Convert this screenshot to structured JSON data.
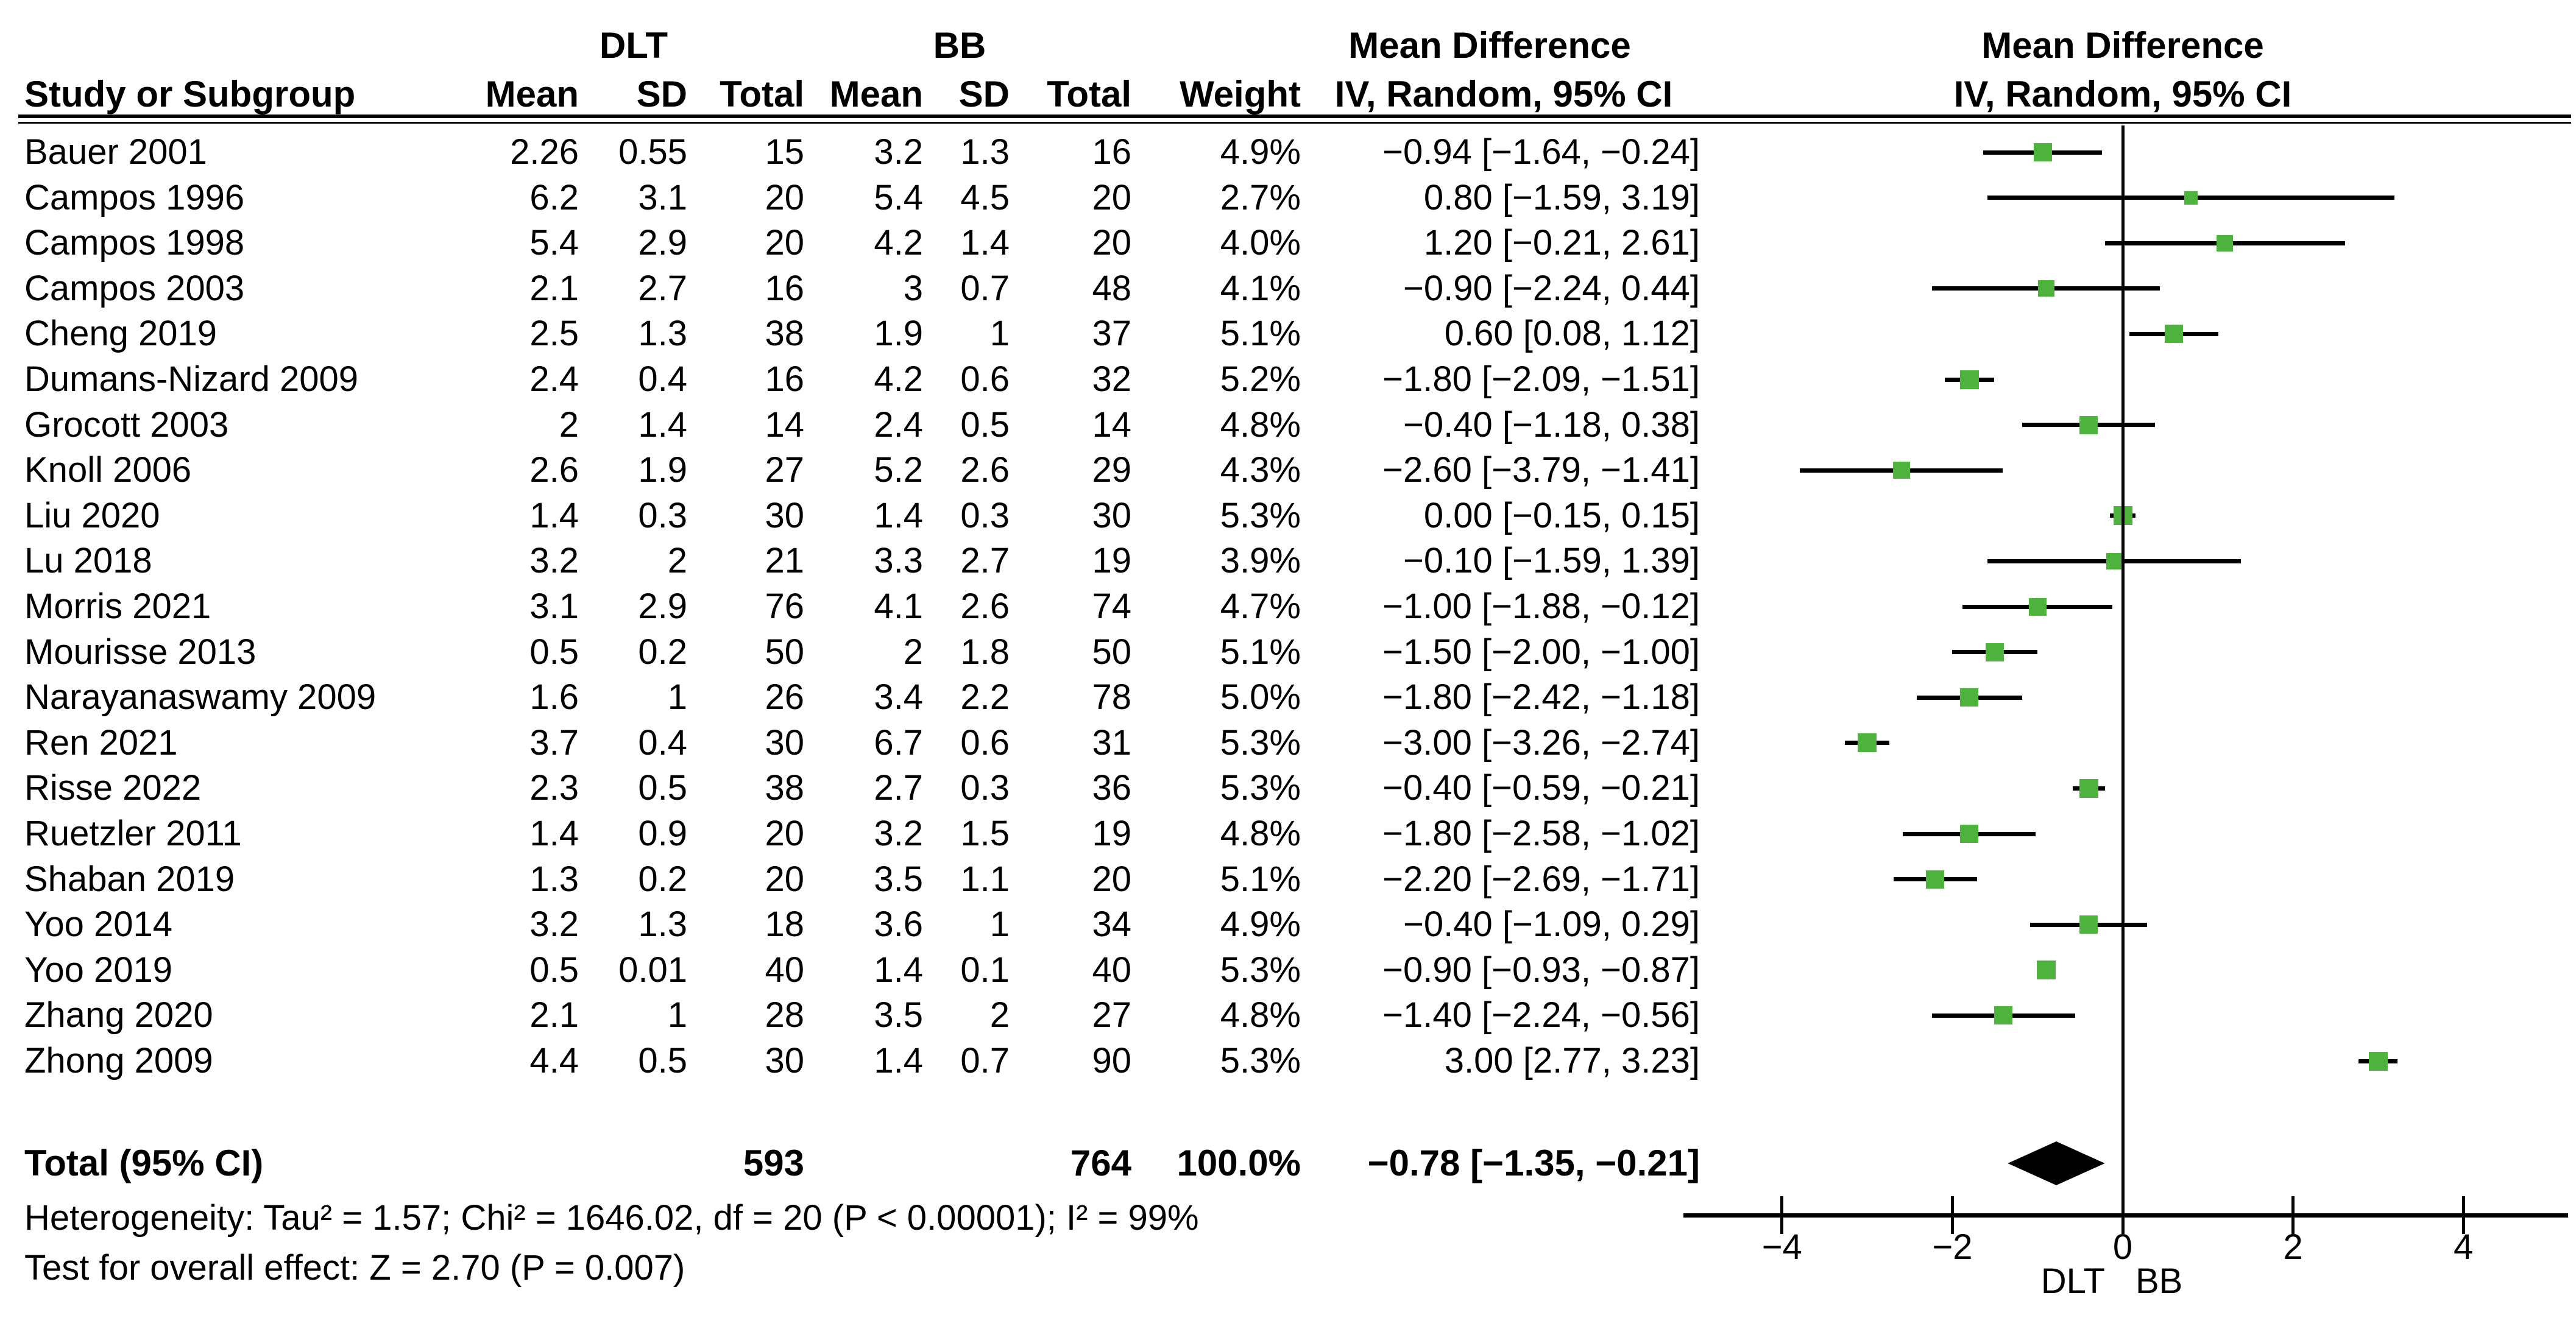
{
  "table": {
    "group_dlt": "DLT",
    "group_bb": "BB",
    "md_header_line1": "Mean Difference",
    "md_header_line2": "IV, Random, 95% CI",
    "col_study": "Study or Subgroup",
    "col_mean": "Mean",
    "col_sd": "SD",
    "col_total": "Total",
    "col_weight": "Weight"
  },
  "plot_header": {
    "line1": "Mean Difference",
    "line2": "IV, Random, 95% CI"
  },
  "total_row": {
    "label": "Total (95% CI)",
    "dlt_total": "593",
    "bb_total": "764",
    "weight": "100.0%",
    "ci": "−0.78 [−1.35, −0.21]"
  },
  "footnotes": {
    "heterogeneity": "Heterogeneity: Tau² = 1.57; Chi² = 1646.02, df = 20 (P < 0.00001); I² = 99%",
    "overall_effect": "Test for overall effect: Z = 2.70 (P = 0.007)"
  },
  "chart_data": {
    "type": "scatter",
    "subtype": "forest-plot",
    "effect_measure": "Mean Difference, IV, Random, 95% CI",
    "axis": {
      "xlim": [
        -5.2,
        5.2
      ],
      "tick_values": [
        -4,
        -2,
        0,
        2,
        4
      ],
      "tick_labels": [
        "−4",
        "−2",
        "0",
        "2",
        "4"
      ],
      "label_left": "DLT",
      "label_right": "BB",
      "zero_line": 0
    },
    "studies": [
      {
        "name": "Bauer 2001",
        "dlt_mean": "2.26",
        "dlt_sd": "0.55",
        "dlt_total": "15",
        "bb_mean": "3.2",
        "bb_sd": "1.3",
        "bb_total": "16",
        "weight": "4.9%",
        "weight_pct": 4.9,
        "ci": "−0.94 [−1.64, −0.24]",
        "est": -0.94,
        "lo": -1.64,
        "hi": -0.24
      },
      {
        "name": "Campos 1996",
        "dlt_mean": "6.2",
        "dlt_sd": "3.1",
        "dlt_total": "20",
        "bb_mean": "5.4",
        "bb_sd": "4.5",
        "bb_total": "20",
        "weight": "2.7%",
        "weight_pct": 2.7,
        "ci": "0.80 [−1.59, 3.19]",
        "est": 0.8,
        "lo": -1.59,
        "hi": 3.19
      },
      {
        "name": "Campos 1998",
        "dlt_mean": "5.4",
        "dlt_sd": "2.9",
        "dlt_total": "20",
        "bb_mean": "4.2",
        "bb_sd": "1.4",
        "bb_total": "20",
        "weight": "4.0%",
        "weight_pct": 4.0,
        "ci": "1.20 [−0.21, 2.61]",
        "est": 1.2,
        "lo": -0.21,
        "hi": 2.61
      },
      {
        "name": "Campos 2003",
        "dlt_mean": "2.1",
        "dlt_sd": "2.7",
        "dlt_total": "16",
        "bb_mean": "3",
        "bb_sd": "0.7",
        "bb_total": "48",
        "weight": "4.1%",
        "weight_pct": 4.1,
        "ci": "−0.90 [−2.24, 0.44]",
        "est": -0.9,
        "lo": -2.24,
        "hi": 0.44
      },
      {
        "name": "Cheng 2019",
        "dlt_mean": "2.5",
        "dlt_sd": "1.3",
        "dlt_total": "38",
        "bb_mean": "1.9",
        "bb_sd": "1",
        "bb_total": "37",
        "weight": "5.1%",
        "weight_pct": 5.1,
        "ci": "0.60 [0.08, 1.12]",
        "est": 0.6,
        "lo": 0.08,
        "hi": 1.12
      },
      {
        "name": "Dumans-Nizard 2009",
        "dlt_mean": "2.4",
        "dlt_sd": "0.4",
        "dlt_total": "16",
        "bb_mean": "4.2",
        "bb_sd": "0.6",
        "bb_total": "32",
        "weight": "5.2%",
        "weight_pct": 5.2,
        "ci": "−1.80 [−2.09, −1.51]",
        "est": -1.8,
        "lo": -2.09,
        "hi": -1.51
      },
      {
        "name": "Grocott 2003",
        "dlt_mean": "2",
        "dlt_sd": "1.4",
        "dlt_total": "14",
        "bb_mean": "2.4",
        "bb_sd": "0.5",
        "bb_total": "14",
        "weight": "4.8%",
        "weight_pct": 4.8,
        "ci": "−0.40 [−1.18, 0.38]",
        "est": -0.4,
        "lo": -1.18,
        "hi": 0.38
      },
      {
        "name": "Knoll 2006",
        "dlt_mean": "2.6",
        "dlt_sd": "1.9",
        "dlt_total": "27",
        "bb_mean": "5.2",
        "bb_sd": "2.6",
        "bb_total": "29",
        "weight": "4.3%",
        "weight_pct": 4.3,
        "ci": "−2.60 [−3.79, −1.41]",
        "est": -2.6,
        "lo": -3.79,
        "hi": -1.41
      },
      {
        "name": "Liu 2020",
        "dlt_mean": "1.4",
        "dlt_sd": "0.3",
        "dlt_total": "30",
        "bb_mean": "1.4",
        "bb_sd": "0.3",
        "bb_total": "30",
        "weight": "5.3%",
        "weight_pct": 5.3,
        "ci": "0.00 [−0.15, 0.15]",
        "est": 0.0,
        "lo": -0.15,
        "hi": 0.15
      },
      {
        "name": "Lu 2018",
        "dlt_mean": "3.2",
        "dlt_sd": "2",
        "dlt_total": "21",
        "bb_mean": "3.3",
        "bb_sd": "2.7",
        "bb_total": "19",
        "weight": "3.9%",
        "weight_pct": 3.9,
        "ci": "−0.10 [−1.59, 1.39]",
        "est": -0.1,
        "lo": -1.59,
        "hi": 1.39
      },
      {
        "name": "Morris 2021",
        "dlt_mean": "3.1",
        "dlt_sd": "2.9",
        "dlt_total": "76",
        "bb_mean": "4.1",
        "bb_sd": "2.6",
        "bb_total": "74",
        "weight": "4.7%",
        "weight_pct": 4.7,
        "ci": "−1.00 [−1.88, −0.12]",
        "est": -1.0,
        "lo": -1.88,
        "hi": -0.12
      },
      {
        "name": "Mourisse 2013",
        "dlt_mean": "0.5",
        "dlt_sd": "0.2",
        "dlt_total": "50",
        "bb_mean": "2",
        "bb_sd": "1.8",
        "bb_total": "50",
        "weight": "5.1%",
        "weight_pct": 5.1,
        "ci": "−1.50 [−2.00, −1.00]",
        "est": -1.5,
        "lo": -2.0,
        "hi": -1.0
      },
      {
        "name": "Narayanaswamy 2009",
        "dlt_mean": "1.6",
        "dlt_sd": "1",
        "dlt_total": "26",
        "bb_mean": "3.4",
        "bb_sd": "2.2",
        "bb_total": "78",
        "weight": "5.0%",
        "weight_pct": 5.0,
        "ci": "−1.80 [−2.42, −1.18]",
        "est": -1.8,
        "lo": -2.42,
        "hi": -1.18
      },
      {
        "name": "Ren 2021",
        "dlt_mean": "3.7",
        "dlt_sd": "0.4",
        "dlt_total": "30",
        "bb_mean": "6.7",
        "bb_sd": "0.6",
        "bb_total": "31",
        "weight": "5.3%",
        "weight_pct": 5.3,
        "ci": "−3.00 [−3.26, −2.74]",
        "est": -3.0,
        "lo": -3.26,
        "hi": -2.74
      },
      {
        "name": "Risse 2022",
        "dlt_mean": "2.3",
        "dlt_sd": "0.5",
        "dlt_total": "38",
        "bb_mean": "2.7",
        "bb_sd": "0.3",
        "bb_total": "36",
        "weight": "5.3%",
        "weight_pct": 5.3,
        "ci": "−0.40 [−0.59, −0.21]",
        "est": -0.4,
        "lo": -0.59,
        "hi": -0.21
      },
      {
        "name": "Ruetzler 2011",
        "dlt_mean": "1.4",
        "dlt_sd": "0.9",
        "dlt_total": "20",
        "bb_mean": "3.2",
        "bb_sd": "1.5",
        "bb_total": "19",
        "weight": "4.8%",
        "weight_pct": 4.8,
        "ci": "−1.80 [−2.58, −1.02]",
        "est": -1.8,
        "lo": -2.58,
        "hi": -1.02
      },
      {
        "name": "Shaban 2019",
        "dlt_mean": "1.3",
        "dlt_sd": "0.2",
        "dlt_total": "20",
        "bb_mean": "3.5",
        "bb_sd": "1.1",
        "bb_total": "20",
        "weight": "5.1%",
        "weight_pct": 5.1,
        "ci": "−2.20 [−2.69, −1.71]",
        "est": -2.2,
        "lo": -2.69,
        "hi": -1.71
      },
      {
        "name": "Yoo 2014",
        "dlt_mean": "3.2",
        "dlt_sd": "1.3",
        "dlt_total": "18",
        "bb_mean": "3.6",
        "bb_sd": "1",
        "bb_total": "34",
        "weight": "4.9%",
        "weight_pct": 4.9,
        "ci": "−0.40 [−1.09, 0.29]",
        "est": -0.4,
        "lo": -1.09,
        "hi": 0.29
      },
      {
        "name": "Yoo 2019",
        "dlt_mean": "0.5",
        "dlt_sd": "0.01",
        "dlt_total": "40",
        "bb_mean": "1.4",
        "bb_sd": "0.1",
        "bb_total": "40",
        "weight": "5.3%",
        "weight_pct": 5.3,
        "ci": "−0.90 [−0.93, −0.87]",
        "est": -0.9,
        "lo": -0.93,
        "hi": -0.87
      },
      {
        "name": "Zhang 2020",
        "dlt_mean": "2.1",
        "dlt_sd": "1",
        "dlt_total": "28",
        "bb_mean": "3.5",
        "bb_sd": "2",
        "bb_total": "27",
        "weight": "4.8%",
        "weight_pct": 4.8,
        "ci": "−1.40 [−2.24, −0.56]",
        "est": -1.4,
        "lo": -2.24,
        "hi": -0.56
      },
      {
        "name": "Zhong 2009",
        "dlt_mean": "4.4",
        "dlt_sd": "0.5",
        "dlt_total": "30",
        "bb_mean": "1.4",
        "bb_sd": "0.7",
        "bb_total": "90",
        "weight": "5.3%",
        "weight_pct": 5.3,
        "ci": "3.00 [2.77, 3.23]",
        "est": 3.0,
        "lo": 2.77,
        "hi": 3.23
      }
    ],
    "total": {
      "est": -0.78,
      "lo": -1.35,
      "hi": -0.21,
      "weight_pct": 100.0
    }
  },
  "colors": {
    "marker_green": "#4fb23c",
    "line_black": "#000000",
    "background": "#ffffff"
  }
}
